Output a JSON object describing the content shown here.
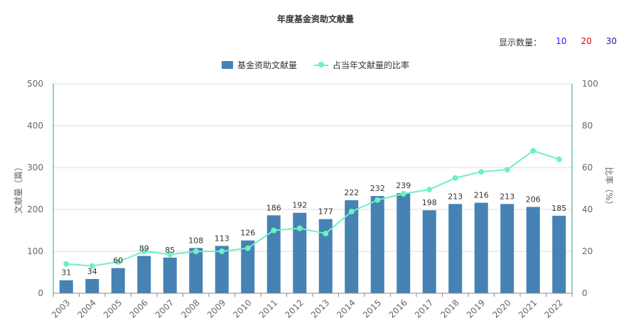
{
  "chart_data": {
    "type": "bar",
    "title": "年度基金资助文献量",
    "categories": [
      "2003",
      "2004",
      "2005",
      "2006",
      "2007",
      "2008",
      "2009",
      "2010",
      "2011",
      "2012",
      "2013",
      "2014",
      "2015",
      "2016",
      "2017",
      "2018",
      "2019",
      "2020",
      "2021",
      "2022"
    ],
    "series": [
      {
        "name": "基金资助文献量",
        "type": "bar",
        "axis": "left",
        "values": [
          31,
          34,
          60,
          89,
          85,
          108,
          113,
          126,
          186,
          192,
          177,
          222,
          232,
          239,
          198,
          213,
          216,
          213,
          206,
          185
        ]
      },
      {
        "name": "占当年文献量的比率",
        "type": "line",
        "axis": "right",
        "values": [
          14,
          13,
          15,
          20,
          18.5,
          20,
          20,
          21.5,
          30,
          31,
          28.5,
          39,
          44.5,
          47.5,
          49.5,
          55,
          58,
          59,
          68,
          64
        ]
      }
    ],
    "ylabel": "文献量（篇）",
    "ylabel_right": "比率（%）",
    "ylim": [
      0,
      500
    ],
    "ylim_right": [
      0,
      100
    ],
    "yticks": [
      "0",
      "100",
      "200",
      "300",
      "400",
      "500"
    ],
    "yticks_right": [
      "0",
      "20",
      "40",
      "60",
      "80",
      "100"
    ],
    "grid": true,
    "legend": "top-center",
    "colors": {
      "bar": "#4682b4",
      "line": "#6ef0c3"
    }
  },
  "count_switch": {
    "label": "显示数量：",
    "options": [
      "10",
      "20",
      "30"
    ]
  }
}
